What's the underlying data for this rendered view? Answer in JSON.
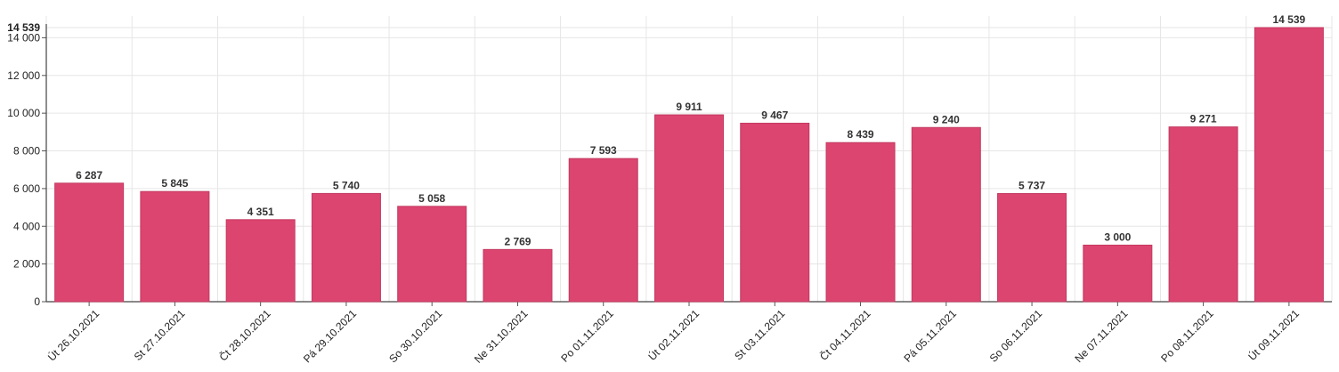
{
  "chart_data": {
    "type": "bar",
    "categories": [
      "Út 26.10.2021",
      "St 27.10.2021",
      "Čt 28.10.2021",
      "Pá 29.10.2021",
      "So 30.10.2021",
      "Ne 31.10.2021",
      "Po 01.11.2021",
      "Út 02.11.2021",
      "St 03.11.2021",
      "Čt 04.11.2021",
      "Pá 05.11.2021",
      "So 06.11.2021",
      "Ne 07.11.2021",
      "Po 08.11.2021",
      "Út 09.11.2021"
    ],
    "values": [
      6287,
      5845,
      4351,
      5740,
      5058,
      2769,
      7593,
      9911,
      9467,
      8439,
      9240,
      5737,
      3000,
      9271,
      14539
    ],
    "value_labels": [
      "6 287",
      "5 845",
      "4 351",
      "5 740",
      "5 058",
      "2 769",
      "7 593",
      "9 911",
      "9 467",
      "8 439",
      "9 240",
      "5 737",
      "3 000",
      "9 271",
      "14 539"
    ],
    "y_ticks": [
      0,
      2000,
      4000,
      6000,
      8000,
      10000,
      12000,
      14000
    ],
    "y_tick_labels": [
      "0",
      "2 000",
      "4 000",
      "6 000",
      "8 000",
      "10 000",
      "12 000",
      "14 000"
    ],
    "y_max_value": 14539,
    "y_max_label": "14 539",
    "ylim": [
      0,
      14539
    ],
    "grid": true,
    "bar_color": "#dc4570",
    "title": "",
    "xlabel": "",
    "ylabel": ""
  }
}
